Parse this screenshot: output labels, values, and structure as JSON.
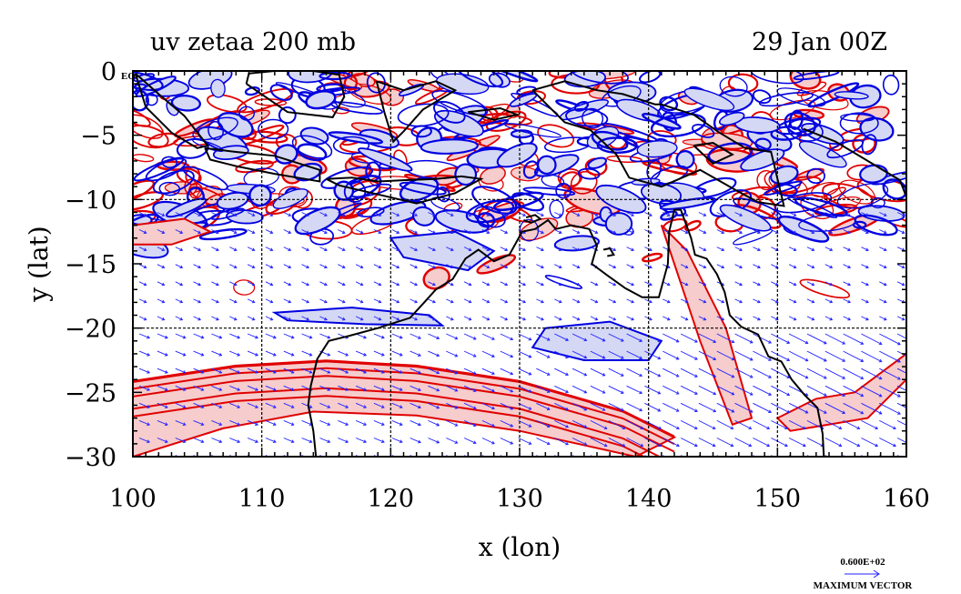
{
  "chart_data": {
    "type": "contour",
    "title": "uv zetaa 200 mb",
    "date_label": "29 Jan 00Z",
    "xlabel": "x (lon)",
    "ylabel": "y (lat)",
    "xlim": [
      100,
      160
    ],
    "ylim": [
      -30,
      0
    ],
    "x_ticks": [
      100,
      110,
      120,
      130,
      140,
      150,
      160
    ],
    "x_tick_labels": [
      "100",
      "110",
      "120",
      "130",
      "140",
      "150",
      "160"
    ],
    "y_ticks": [
      0,
      -5,
      -10,
      -15,
      -20,
      -25,
      -30
    ],
    "y_tick_labels": [
      "0",
      "−5",
      "−10",
      "−15",
      "−20",
      "−25",
      "−30"
    ],
    "grid_lon": [
      110,
      120,
      130,
      140,
      150
    ],
    "grid_lat": [
      -10,
      -20
    ],
    "equator_label": "EQ",
    "vector_legend": {
      "value": "0.600E+02",
      "label": "MAXIMUM VECTOR"
    },
    "colors": {
      "positive_contour": "#e00000",
      "positive_fill": "#f6cccc",
      "negative_contour": "#0000e0",
      "negative_fill": "#d4d8f4",
      "vectors": "#2020ff",
      "coastline": "#000000"
    },
    "positive_regions": [
      {
        "lon": [
          100,
          108,
          115,
          122,
          130,
          138,
          142,
          139,
          130,
          122,
          114,
          107,
          100
        ],
        "lat": [
          -24.2,
          -23.0,
          -22.6,
          -23.0,
          -24.2,
          -26.5,
          -28.5,
          -30,
          -28.0,
          -26.8,
          -26.5,
          -27.8,
          -30
        ]
      },
      {
        "lon": [
          141,
          143,
          146,
          148,
          146.5,
          144
        ],
        "lat": [
          -12,
          -14,
          -20,
          -27,
          -27.5,
          -21
        ]
      },
      {
        "lon": [
          150,
          153,
          156,
          160,
          160,
          157,
          151
        ],
        "lat": [
          -27,
          -25.5,
          -25,
          -22,
          -24,
          -27,
          -28
        ]
      },
      {
        "lon": [
          100,
          104,
          106,
          103,
          100
        ],
        "lat": [
          -12,
          -11.5,
          -12.5,
          -13.5,
          -13.5
        ]
      }
    ],
    "negative_regions": [
      {
        "lon": [
          111,
          117,
          123,
          124,
          118,
          112
        ],
        "lat": [
          -18.8,
          -18.4,
          -19.0,
          -19.8,
          -19.7,
          -19.4
        ]
      },
      {
        "lon": [
          132,
          137,
          141,
          140,
          135,
          131
        ],
        "lat": [
          -20,
          -19.5,
          -21,
          -22.5,
          -22.5,
          -21.5
        ]
      },
      {
        "lon": [
          120,
          125,
          128,
          126,
          121
        ],
        "lat": [
          -13,
          -12.5,
          -14,
          -15.5,
          -14.5
        ]
      }
    ],
    "coastline": [
      {
        "lon": [
          114.2,
          114.0,
          113.6,
          113.8,
          114.3,
          115.2,
          116.8,
          119.0,
          121.5,
          122.6,
          123.5,
          124.8,
          125.8,
          126.8,
          128.0,
          129.2,
          130.2,
          131.2,
          132.2,
          132.8,
          134.0,
          135.4,
          136.0,
          135.6,
          136.8,
          138.2,
          139.5,
          140.8,
          141.5,
          141.6,
          142.0,
          142.5,
          143.3,
          143.6,
          144.5,
          145.3,
          145.9,
          146.3,
          147.2,
          148.5,
          149.3,
          150.3,
          151.1,
          152.1,
          153.1,
          153.5,
          153.6
        ],
        "lat": [
          -30,
          -28.0,
          -26.0,
          -24.5,
          -22.4,
          -21.0,
          -20.6,
          -20.0,
          -19.2,
          -18.0,
          -17.0,
          -16.2,
          -14.6,
          -13.9,
          -14.8,
          -14.3,
          -12.5,
          -12.3,
          -11.6,
          -12.3,
          -12.0,
          -12.3,
          -13.6,
          -15.0,
          -15.9,
          -16.9,
          -17.6,
          -17.6,
          -15.0,
          -12.5,
          -10.8,
          -10.8,
          -13.0,
          -14.3,
          -14.6,
          -15.8,
          -17.2,
          -19.0,
          -19.9,
          -20.5,
          -22.2,
          -22.6,
          -24.0,
          -25.2,
          -26.2,
          -28.2,
          -30
        ]
      },
      {
        "lon": [
          130.5,
          131.2,
          131.6,
          130.9,
          130.3
        ],
        "lat": [
          -11.4,
          -11.2,
          -11.5,
          -11.8,
          -11.6
        ]
      },
      {
        "lon": [
          136.5,
          137.0,
          137.3,
          136.8
        ],
        "lat": [
          -13.9,
          -13.8,
          -14.3,
          -14.4
        ]
      },
      {
        "lon": [
          131.0,
          133.5,
          136.0,
          138.0,
          140.5,
          141.0,
          143.5,
          145.5,
          147.5,
          149.5,
          150.5,
          148.5,
          147.0,
          144.0,
          141.0,
          138.5,
          137.5,
          135.5,
          133.5,
          132.5,
          131.0
        ],
        "lat": [
          -1.5,
          -0.8,
          -1.5,
          -1.8,
          -2.6,
          -2.6,
          -3.4,
          -4.8,
          -6.0,
          -6.3,
          -10.5,
          -10.2,
          -9.4,
          -7.7,
          -9.0,
          -8.3,
          -6.5,
          -4.6,
          -4.0,
          -3.0,
          -1.5
        ]
      },
      {
        "lon": [
          105.6,
          108.0,
          111.0,
          114.5,
          114.5,
          111.0,
          108.0,
          106.0,
          105.6
        ],
        "lat": [
          -6.0,
          -6.3,
          -6.6,
          -7.7,
          -8.6,
          -8.0,
          -7.4,
          -6.9,
          -6.0
        ]
      },
      {
        "lon": [
          115.0,
          117.0,
          119.0,
          121.0,
          123.5,
          125.5,
          127.0,
          125.0,
          122.0,
          119.0,
          116.0,
          115.0
        ],
        "lat": [
          -8.4,
          -8.3,
          -8.6,
          -8.5,
          -8.4,
          -8.2,
          -8.4,
          -9.5,
          -10.3,
          -9.6,
          -8.9,
          -8.4
        ]
      },
      {
        "lon": [
          100.2,
          102.0,
          104.0,
          105.8,
          105.0,
          103.0,
          101.0,
          100.2
        ],
        "lat": [
          -0.2,
          -1.8,
          -3.5,
          -5.8,
          -6.0,
          -4.8,
          -2.8,
          -0.2
        ]
      },
      {
        "lon": [
          108.8,
          112.0,
          115.5,
          116.4,
          116.0,
          114.0,
          111.0,
          109.0,
          108.8
        ],
        "lat": [
          -1.0,
          -3.2,
          -3.6,
          -2.0,
          -0.3,
          0,
          0,
          -0.2,
          -1.0
        ]
      },
      {
        "lon": [
          118.9,
          121.0,
          123.5,
          125.0,
          122.5,
          121.0,
          120.2,
          119.5,
          118.9
        ],
        "lat": [
          -0.8,
          -1.5,
          -0.8,
          -1.5,
          -3.0,
          -4.7,
          -5.5,
          -3.2,
          -0.8
        ]
      },
      {
        "lon": [
          126.0,
          128.5,
          129.8,
          128.0,
          126.0
        ],
        "lat": [
          -3.2,
          -2.9,
          -3.4,
          -3.8,
          -3.2
        ]
      },
      {
        "lon": [
          143.5,
          145.0,
          146.5,
          145.0,
          143.5
        ],
        "lat": [
          -5.8,
          -5.6,
          -6.5,
          -7.2,
          -5.8
        ]
      },
      {
        "lon": [
          152.0,
          154.5,
          157.0,
          159.5,
          160.0
        ],
        "lat": [
          -4.5,
          -5.5,
          -7.0,
          -8.5,
          -9.8
        ]
      }
    ]
  }
}
